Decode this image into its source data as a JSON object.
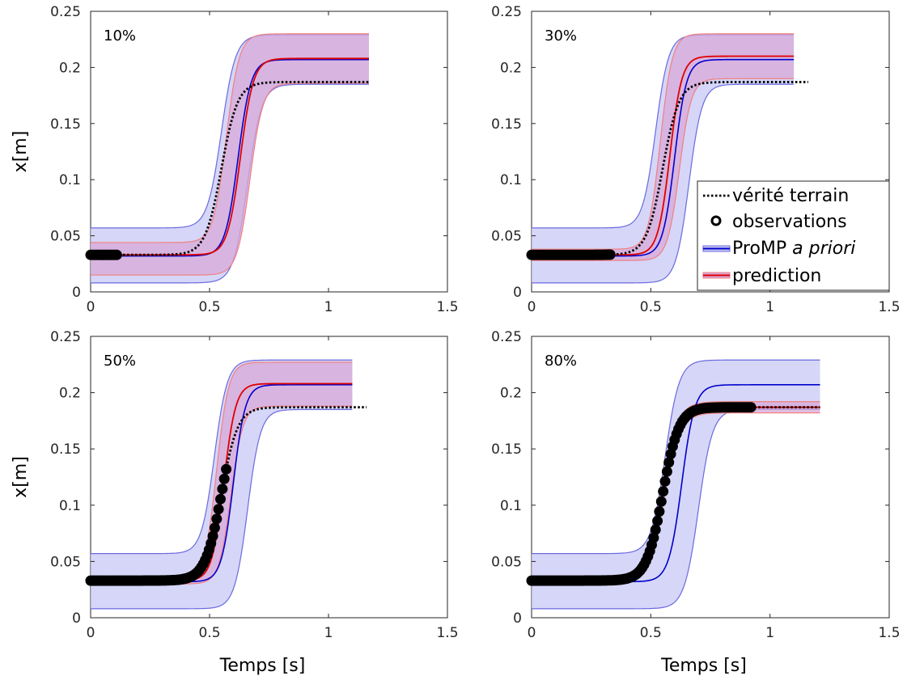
{
  "figure": {
    "colors": {
      "prior_line": "#0000cc",
      "prior_band": "#c8c8f5",
      "prior_band_edge": "#6a6ae0",
      "pred_line": "#e00000",
      "pred_band": "#d8a8d8",
      "pred_band_edge": "#f08080",
      "truth": "#000000",
      "obs": "#000000"
    }
  },
  "legend": {
    "entries": [
      "vérité terrain",
      "observations",
      "ProMP",
      "a priori",
      "prediction"
    ]
  },
  "chart_data": [
    {
      "type": "line",
      "panel_label": "10%",
      "xlabel": "",
      "ylabel": "x[m]",
      "xlim": [
        0,
        1.5
      ],
      "ylim": [
        0,
        0.25
      ],
      "xticks": [
        "0",
        "0.5",
        "1",
        "1.5"
      ],
      "yticks": [
        "0",
        "0.05",
        "0.1",
        "0.15",
        "0.2",
        "0.25"
      ],
      "t_end": 1.17,
      "truth_end": 1.17,
      "obs_end": 0.11,
      "prior": {
        "start": 0.032,
        "end": 0.207,
        "mid": 0.62,
        "width": 0.12,
        "upper": {
          "start": 0.057,
          "end": 0.229,
          "mid": 0.55,
          "width": 0.13
        },
        "lower": {
          "start": 0.008,
          "end": 0.185,
          "mid": 0.66,
          "width": 0.13
        }
      },
      "prediction": {
        "start": 0.033,
        "end": 0.208,
        "mid": 0.63,
        "width": 0.12,
        "upper": {
          "start": 0.044,
          "end": 0.23,
          "mid": 0.57,
          "width": 0.12
        },
        "lower": {
          "start": 0.015,
          "end": 0.186,
          "mid": 0.67,
          "width": 0.12
        }
      },
      "truth": {
        "start": 0.033,
        "end": 0.187,
        "mid": 0.55,
        "width": 0.15
      }
    },
    {
      "type": "line",
      "panel_label": "30%",
      "xlabel": "",
      "ylabel": "",
      "xlim": [
        0,
        1.5
      ],
      "ylim": [
        0,
        0.25
      ],
      "xticks": [
        "0",
        "0.5",
        "1",
        "1.5"
      ],
      "yticks": [
        "0",
        "0.05",
        "0.1",
        "0.15",
        "0.2",
        "0.25"
      ],
      "t_end": 1.1,
      "truth_end": 1.16,
      "obs_end": 0.33,
      "prior": {
        "start": 0.032,
        "end": 0.207,
        "mid": 0.6,
        "width": 0.11,
        "upper": {
          "start": 0.057,
          "end": 0.229,
          "mid": 0.52,
          "width": 0.12
        },
        "lower": {
          "start": 0.008,
          "end": 0.185,
          "mid": 0.66,
          "width": 0.12
        }
      },
      "prediction": {
        "start": 0.033,
        "end": 0.21,
        "mid": 0.58,
        "width": 0.11,
        "upper": {
          "start": 0.038,
          "end": 0.23,
          "mid": 0.54,
          "width": 0.11
        },
        "lower": {
          "start": 0.028,
          "end": 0.19,
          "mid": 0.62,
          "width": 0.11
        }
      },
      "truth": {
        "start": 0.033,
        "end": 0.187,
        "mid": 0.55,
        "width": 0.15
      }
    },
    {
      "type": "line",
      "panel_label": "50%",
      "xlabel": "Temps [s]",
      "ylabel": "x[m]",
      "xlim": [
        0,
        1.5
      ],
      "ylim": [
        0,
        0.25
      ],
      "xticks": [
        "0",
        "0.5",
        "1",
        "1.5"
      ],
      "yticks": [
        "0",
        "0.05",
        "0.1",
        "0.15",
        "0.2",
        "0.25"
      ],
      "t_end": 1.1,
      "truth_end": 1.16,
      "obs_end": 0.57,
      "prior": {
        "start": 0.032,
        "end": 0.207,
        "mid": 0.6,
        "width": 0.11,
        "upper": {
          "start": 0.057,
          "end": 0.229,
          "mid": 0.52,
          "width": 0.12
        },
        "lower": {
          "start": 0.008,
          "end": 0.185,
          "mid": 0.66,
          "width": 0.12
        }
      },
      "prediction": {
        "start": 0.033,
        "end": 0.208,
        "mid": 0.56,
        "width": 0.11,
        "upper": {
          "start": 0.036,
          "end": 0.227,
          "mid": 0.53,
          "width": 0.11
        },
        "lower": {
          "start": 0.03,
          "end": 0.188,
          "mid": 0.59,
          "width": 0.11
        }
      },
      "truth": {
        "start": 0.033,
        "end": 0.187,
        "mid": 0.55,
        "width": 0.15
      }
    },
    {
      "type": "line",
      "panel_label": "80%",
      "xlabel": "Temps [s]",
      "ylabel": "",
      "xlim": [
        0,
        1.5
      ],
      "ylim": [
        0,
        0.25
      ],
      "xticks": [
        "0",
        "0.5",
        "1",
        "1.5"
      ],
      "yticks": [
        "0",
        "0.05",
        "0.1",
        "0.15",
        "0.2",
        "0.25"
      ],
      "t_end": 1.21,
      "truth_end": 1.21,
      "obs_end": 0.92,
      "prior": {
        "start": 0.032,
        "end": 0.207,
        "mid": 0.63,
        "width": 0.12,
        "upper": {
          "start": 0.057,
          "end": 0.229,
          "mid": 0.56,
          "width": 0.13
        },
        "lower": {
          "start": 0.008,
          "end": 0.185,
          "mid": 0.7,
          "width": 0.13
        }
      },
      "prediction": {
        "start": 0.033,
        "end": 0.187,
        "mid": 0.55,
        "width": 0.15,
        "upper": {
          "start": 0.037,
          "end": 0.192,
          "mid": 0.545,
          "width": 0.15
        },
        "lower": {
          "start": 0.029,
          "end": 0.182,
          "mid": 0.555,
          "width": 0.15
        }
      },
      "truth": {
        "start": 0.033,
        "end": 0.187,
        "mid": 0.55,
        "width": 0.15
      }
    }
  ]
}
